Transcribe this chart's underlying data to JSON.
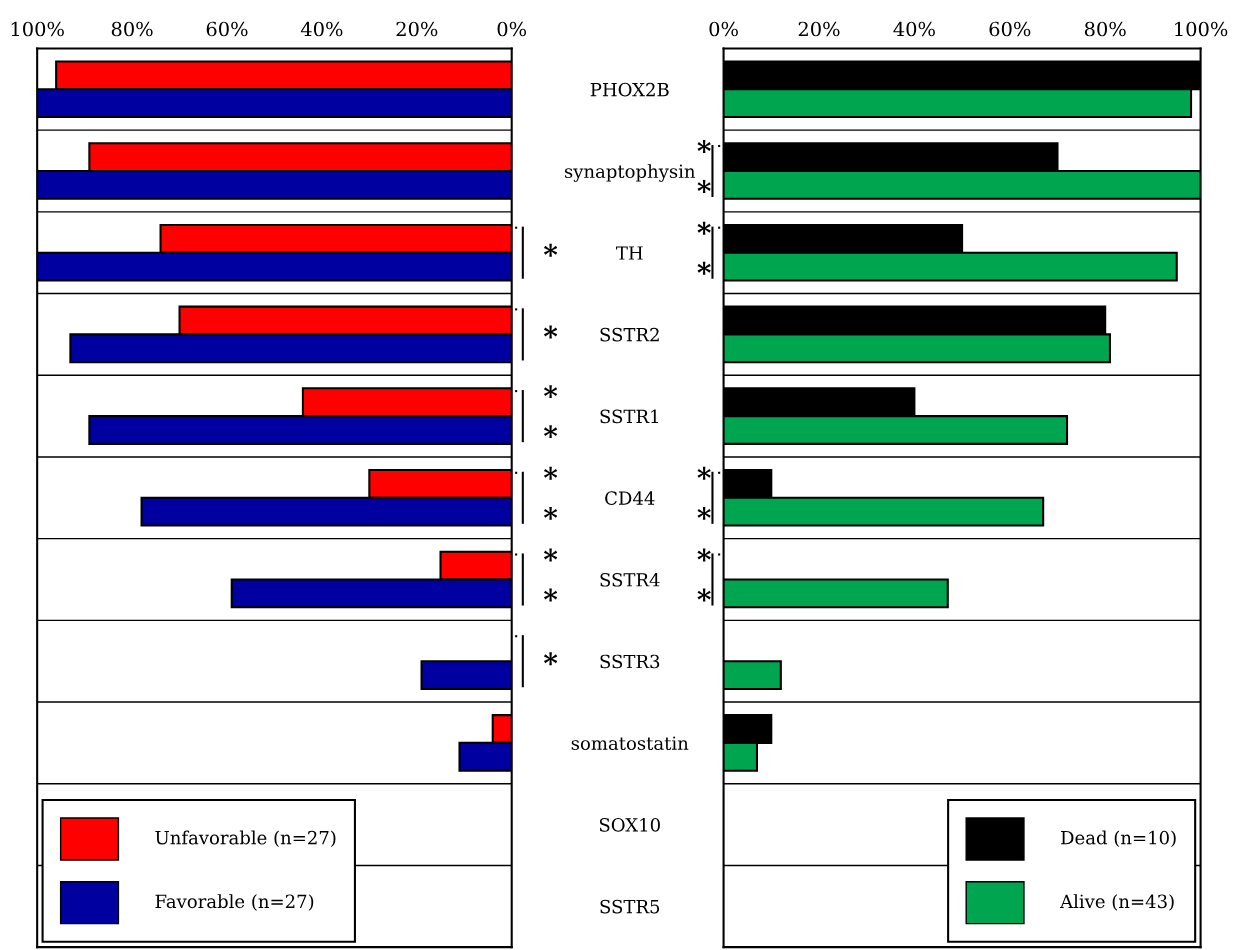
{
  "chart_data": [
    {
      "type": "bar",
      "orientation": "horizontal",
      "categories": [
        "PHOX2B",
        "synaptophysin",
        "TH",
        "SSTR2",
        "SSTR1",
        "CD44",
        "SSTR4",
        "SSTR3",
        "somatostatin",
        "SOX10",
        "SSTR5"
      ],
      "series": [
        {
          "name": "Unfavorable (n=27)",
          "color": "#ff0000",
          "values": [
            96,
            89,
            74,
            70,
            44,
            30,
            15,
            0,
            4,
            0,
            0
          ]
        },
        {
          "name": "Favorable (n=27)",
          "color": "#0000a0",
          "values": [
            100,
            100,
            100,
            93,
            89,
            78,
            59,
            19,
            11,
            0,
            0
          ]
        }
      ],
      "xlim": [
        100,
        0
      ],
      "xticks": [
        {
          "value": 100,
          "label": "100%"
        },
        {
          "value": 80,
          "label": "80%"
        },
        {
          "value": 60,
          "label": "60%"
        },
        {
          "value": 40,
          "label": "40%"
        },
        {
          "value": 20,
          "label": "20%"
        },
        {
          "value": 0,
          "label": "0%"
        }
      ],
      "grid": "y",
      "legend": "bottom left",
      "annotations": [
        "*",
        "*",
        "*",
        "*",
        "*",
        "*",
        "*",
        "*",
        "*"
      ]
    },
    {
      "type": "bar",
      "orientation": "horizontal",
      "categories": [
        null,
        null,
        null,
        null,
        null,
        null,
        null,
        null,
        null,
        null,
        null
      ],
      "series": [
        {
          "name": "Dead (n=10)",
          "color": "#000000",
          "values": [
            100,
            70,
            50,
            80,
            40,
            10,
            0,
            0,
            10,
            0,
            0
          ]
        },
        {
          "name": "Alive (n=43)",
          "color": "#00a550",
          "values": [
            98,
            100,
            95,
            81,
            72,
            67,
            47,
            12,
            7,
            0,
            0
          ]
        }
      ],
      "xlim": [
        0,
        100
      ],
      "xticks": [
        {
          "value": 0,
          "label": "0%"
        },
        {
          "value": 20,
          "label": "20%"
        },
        {
          "value": 40,
          "label": "40%"
        },
        {
          "value": 60,
          "label": "60%"
        },
        {
          "value": 80,
          "label": "80%"
        },
        {
          "value": 100,
          "label": "100%"
        }
      ],
      "grid": "y",
      "legend": "bottom right",
      "tick_labels": "x",
      "annotations": [
        "*",
        "*",
        "*",
        "*",
        "*",
        "*",
        "*",
        "*"
      ]
    }
  ]
}
